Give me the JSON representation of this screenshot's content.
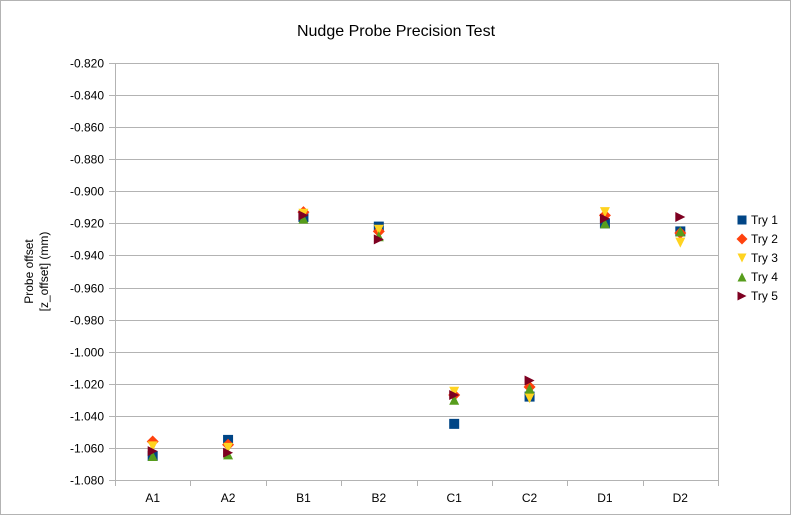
{
  "chart_data": {
    "type": "scatter",
    "title": "Nudge Probe Precision Test",
    "ylabel_lines": [
      "Probe offset",
      "[z_offset] (mm)"
    ],
    "xlabel": "",
    "categories": [
      "A1",
      "A2",
      "B1",
      "B2",
      "C1",
      "C2",
      "D1",
      "D2"
    ],
    "ylim": [
      -1.08,
      -0.82
    ],
    "ytick_step": 0.02,
    "yticks": [
      "-0.820",
      "-0.840",
      "-0.860",
      "-0.880",
      "-0.900",
      "-0.920",
      "-0.940",
      "-0.960",
      "-0.980",
      "-1.000",
      "-1.020",
      "-1.040",
      "-1.060",
      "-1.080"
    ],
    "grid": true,
    "legend_position": "right",
    "series": [
      {
        "name": "Try 1",
        "marker": "square",
        "color": "#004586",
        "values": [
          -1.065,
          -1.055,
          -0.916,
          -0.922,
          -1.045,
          -1.028,
          -0.92,
          -0.925
        ]
      },
      {
        "name": "Try 2",
        "marker": "diamond",
        "color": "#ff420e",
        "values": [
          -1.056,
          -1.058,
          -0.913,
          -0.925,
          -1.027,
          -1.022,
          -0.915,
          -0.926
        ]
      },
      {
        "name": "Try 3",
        "marker": "triangle-down",
        "color": "#ffd320",
        "values": [
          -1.059,
          -1.06,
          -0.914,
          -0.924,
          -1.025,
          -1.029,
          -0.913,
          -0.932
        ]
      },
      {
        "name": "Try 4",
        "marker": "triangle-up",
        "color": "#579d1c",
        "values": [
          -1.065,
          -1.064,
          -0.917,
          -0.928,
          -1.03,
          -1.023,
          -0.92,
          -0.925
        ]
      },
      {
        "name": "Try 5",
        "marker": "triangle-right",
        "color": "#7e0021",
        "values": [
          -1.062,
          -1.063,
          -0.915,
          -0.93,
          -1.027,
          -1.018,
          -0.917,
          -0.916
        ]
      }
    ]
  }
}
